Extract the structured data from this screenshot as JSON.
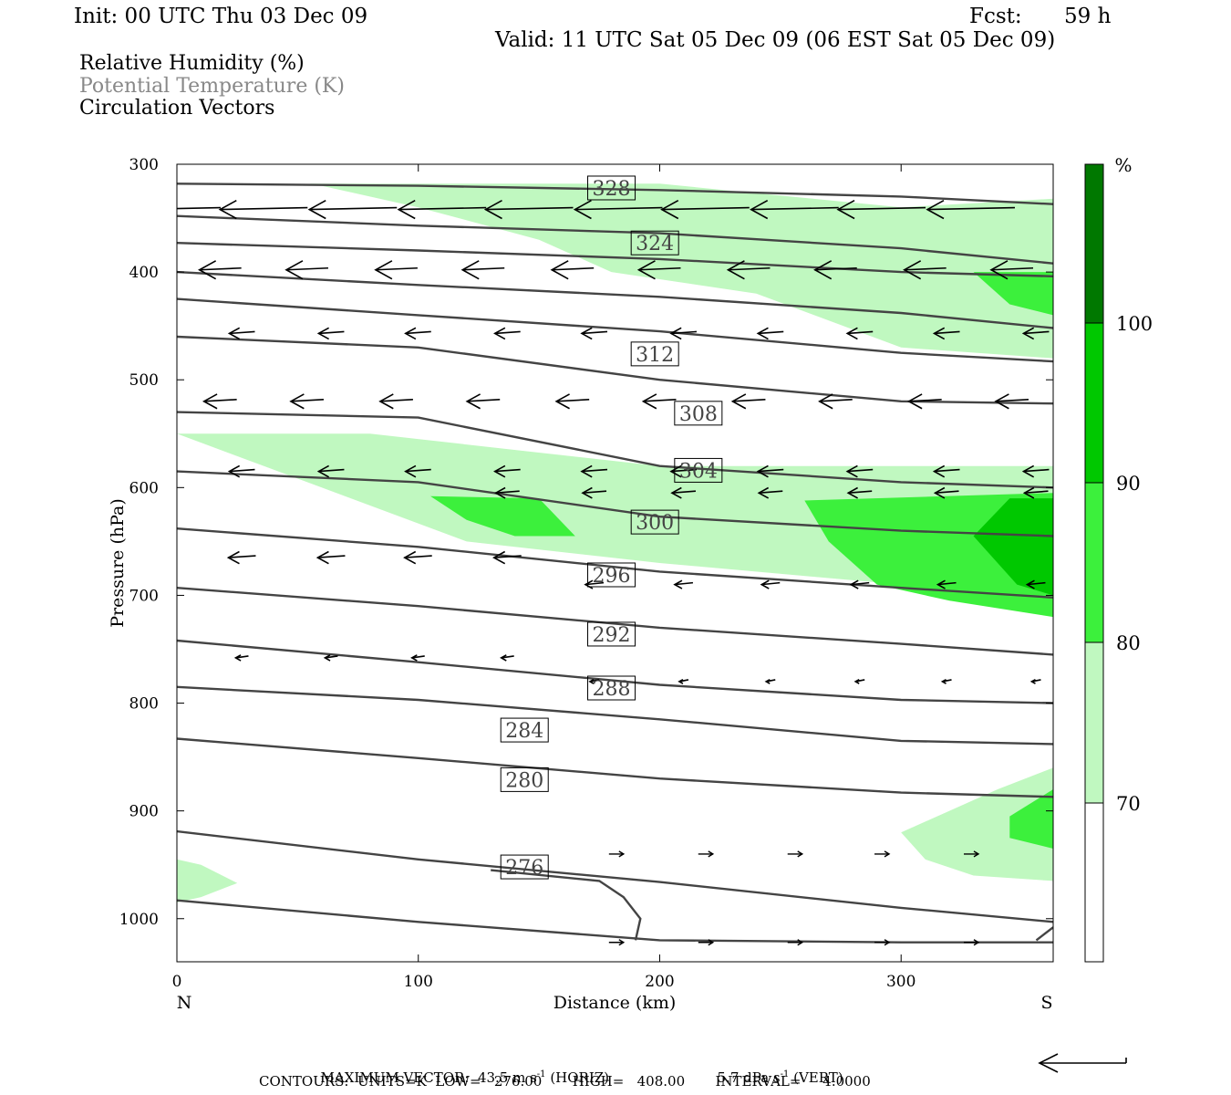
{
  "header": {
    "init": "Init: 00 UTC Thu 03 Dec 09",
    "fcst_label": "Fcst:",
    "fcst_value": "59 h",
    "valid": "Valid: 11 UTC Sat 05 Dec 09 (06 EST Sat 05 Dec 09)"
  },
  "legend": {
    "line1": "Relative Humidity (%)",
    "line2": "Potential Temperature (K)",
    "line3": "Circulation Vectors"
  },
  "footer": {
    "max_vector_label": "MAXIMUM VECTOR:",
    "max_horiz": "43.5 m s",
    "max_horiz_exp": "-1",
    "max_horiz_unit": " (HORIZ)",
    "max_vert": "5.7 dPa s",
    "max_vert_exp": "-1",
    "max_vert_unit": " (VERT)",
    "contours_text": "CONTOURS:  UNITS=K  LOW=   276.00       HIGH=   408.00       INTERVAL=     4.0000"
  },
  "colors": {
    "rh_70_80": "#c0f8c0",
    "rh_80_90": "#3cf03c",
    "rh_90_100": "#00c800",
    "rh_100_plus": "#007800",
    "theta_line": "#444444"
  },
  "chart_data": {
    "type": "cross-section",
    "ylabel": "Pressure (hPa)",
    "xlabel": "Distance (km)",
    "x_left_label": "N",
    "x_right_label": "S",
    "xlim": [
      0,
      363
    ],
    "ylim": [
      300,
      1040
    ],
    "y_ticks": [
      300,
      400,
      500,
      600,
      700,
      800,
      900,
      1000
    ],
    "x_ticks": [
      0,
      100,
      200,
      300
    ],
    "colorbar": {
      "unit": "%",
      "levels": [
        70,
        80,
        90,
        100
      ]
    },
    "theta_labels": [
      {
        "value": "328",
        "x": 180,
        "p": 322
      },
      {
        "value": "324",
        "x": 198,
        "p": 373
      },
      {
        "value": "312",
        "x": 198,
        "p": 476
      },
      {
        "value": "308",
        "x": 216,
        "p": 531
      },
      {
        "value": "304",
        "x": 216,
        "p": 584
      },
      {
        "value": "300",
        "x": 198,
        "p": 632
      },
      {
        "value": "296",
        "x": 180,
        "p": 681
      },
      {
        "value": "292",
        "x": 180,
        "p": 736
      },
      {
        "value": "288",
        "x": 180,
        "p": 786
      },
      {
        "value": "284",
        "x": 144,
        "p": 825
      },
      {
        "value": "280",
        "x": 144,
        "p": 871
      },
      {
        "value": "276",
        "x": 144,
        "p": 952
      }
    ],
    "theta_lines": [
      [
        [
          0,
          318
        ],
        [
          100,
          320
        ],
        [
          200,
          324
        ],
        [
          300,
          330
        ],
        [
          363,
          337
        ]
      ],
      [
        [
          0,
          348
        ],
        [
          100,
          357
        ],
        [
          200,
          364
        ],
        [
          300,
          378
        ],
        [
          363,
          392
        ]
      ],
      [
        [
          0,
          373
        ],
        [
          100,
          380
        ],
        [
          200,
          388
        ],
        [
          300,
          400
        ],
        [
          363,
          404
        ]
      ],
      [
        [
          0,
          400
        ],
        [
          100,
          412
        ],
        [
          200,
          423
        ],
        [
          300,
          438
        ],
        [
          363,
          452
        ]
      ],
      [
        [
          0,
          425
        ],
        [
          100,
          440
        ],
        [
          200,
          455
        ],
        [
          300,
          475
        ],
        [
          363,
          483
        ]
      ],
      [
        [
          0,
          460
        ],
        [
          100,
          470
        ],
        [
          200,
          500
        ],
        [
          300,
          520
        ],
        [
          363,
          522
        ]
      ],
      [
        [
          0,
          530
        ],
        [
          100,
          535
        ],
        [
          200,
          580
        ],
        [
          300,
          595
        ],
        [
          363,
          600
        ]
      ],
      [
        [
          0,
          585
        ],
        [
          100,
          595
        ],
        [
          200,
          627
        ],
        [
          300,
          640
        ],
        [
          363,
          645
        ]
      ],
      [
        [
          0,
          638
        ],
        [
          100,
          655
        ],
        [
          200,
          678
        ],
        [
          300,
          693
        ],
        [
          363,
          702
        ]
      ],
      [
        [
          0,
          693
        ],
        [
          100,
          710
        ],
        [
          200,
          730
        ],
        [
          300,
          745
        ],
        [
          363,
          755
        ]
      ],
      [
        [
          0,
          742
        ],
        [
          100,
          762
        ],
        [
          200,
          783
        ],
        [
          300,
          797
        ],
        [
          363,
          800
        ]
      ],
      [
        [
          0,
          785
        ],
        [
          100,
          797
        ],
        [
          200,
          815
        ],
        [
          300,
          835
        ],
        [
          363,
          838
        ]
      ],
      [
        [
          0,
          833
        ],
        [
          100,
          851
        ],
        [
          200,
          870
        ],
        [
          300,
          883
        ],
        [
          363,
          887
        ]
      ],
      [
        [
          0,
          919
        ],
        [
          100,
          945
        ],
        [
          200,
          966
        ],
        [
          300,
          990
        ],
        [
          363,
          1003
        ]
      ],
      [
        [
          0,
          983
        ],
        [
          100,
          1003
        ],
        [
          200,
          1020
        ],
        [
          300,
          1022
        ],
        [
          363,
          1022
        ]
      ]
    ],
    "rh_70_regions": [
      [
        [
          55,
          318
        ],
        [
          200,
          318
        ],
        [
          300,
          340
        ],
        [
          363,
          332
        ],
        [
          363,
          480
        ],
        [
          300,
          470
        ],
        [
          240,
          420
        ],
        [
          180,
          400
        ],
        [
          150,
          370
        ],
        [
          100,
          340
        ],
        [
          60,
          320
        ]
      ],
      [
        [
          0,
          550
        ],
        [
          80,
          550
        ],
        [
          200,
          580
        ],
        [
          363,
          580
        ],
        [
          363,
          720
        ],
        [
          300,
          690
        ],
        [
          200,
          670
        ],
        [
          120,
          650
        ],
        [
          60,
          600
        ]
      ],
      [
        [
          0,
          945
        ],
        [
          10,
          950
        ],
        [
          25,
          967
        ],
        [
          10,
          980
        ],
        [
          0,
          985
        ]
      ],
      [
        [
          300,
          920
        ],
        [
          340,
          880
        ],
        [
          363,
          860
        ],
        [
          363,
          965
        ],
        [
          330,
          960
        ],
        [
          310,
          945
        ]
      ]
    ],
    "rh_80_regions": [
      [
        [
          330,
          400
        ],
        [
          363,
          400
        ],
        [
          363,
          440
        ],
        [
          345,
          430
        ]
      ],
      [
        [
          105,
          608
        ],
        [
          150,
          610
        ],
        [
          165,
          645
        ],
        [
          140,
          645
        ],
        [
          120,
          630
        ]
      ],
      [
        [
          260,
          612
        ],
        [
          363,
          605
        ],
        [
          363,
          720
        ],
        [
          320,
          705
        ],
        [
          290,
          690
        ],
        [
          270,
          650
        ]
      ],
      [
        [
          345,
          905
        ],
        [
          363,
          880
        ],
        [
          363,
          935
        ],
        [
          345,
          925
        ]
      ]
    ],
    "rh_90_regions": [
      [
        [
          330,
          645
        ],
        [
          345,
          610
        ],
        [
          363,
          610
        ],
        [
          363,
          700
        ],
        [
          348,
          690
        ]
      ]
    ]
  }
}
